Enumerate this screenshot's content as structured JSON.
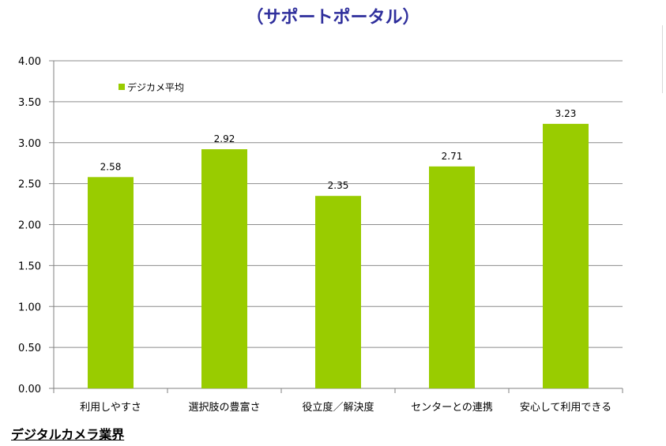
{
  "header": {
    "title": "（サポートポータル）"
  },
  "footer": {
    "title": "デジタルカメラ業界"
  },
  "chart_data": {
    "type": "bar",
    "categories": [
      "利用しやすさ",
      "選択肢の豊富さ",
      "役立度／解決度",
      "センターとの連携",
      "安心して利用できる"
    ],
    "series": [
      {
        "name": "デジカメ平均",
        "values": [
          2.58,
          2.92,
          2.35,
          2.71,
          3.23
        ],
        "color": "#99cc00"
      }
    ],
    "value_labels": [
      "2.58",
      "2.92",
      "2.35",
      "2.71",
      "3.23"
    ],
    "y_ticks": [
      "0.00",
      "0.50",
      "1.00",
      "1.50",
      "2.00",
      "2.50",
      "3.00",
      "3.50",
      "4.00"
    ],
    "ylim": [
      0,
      4
    ],
    "grid": true,
    "legend_position": "top-left"
  }
}
